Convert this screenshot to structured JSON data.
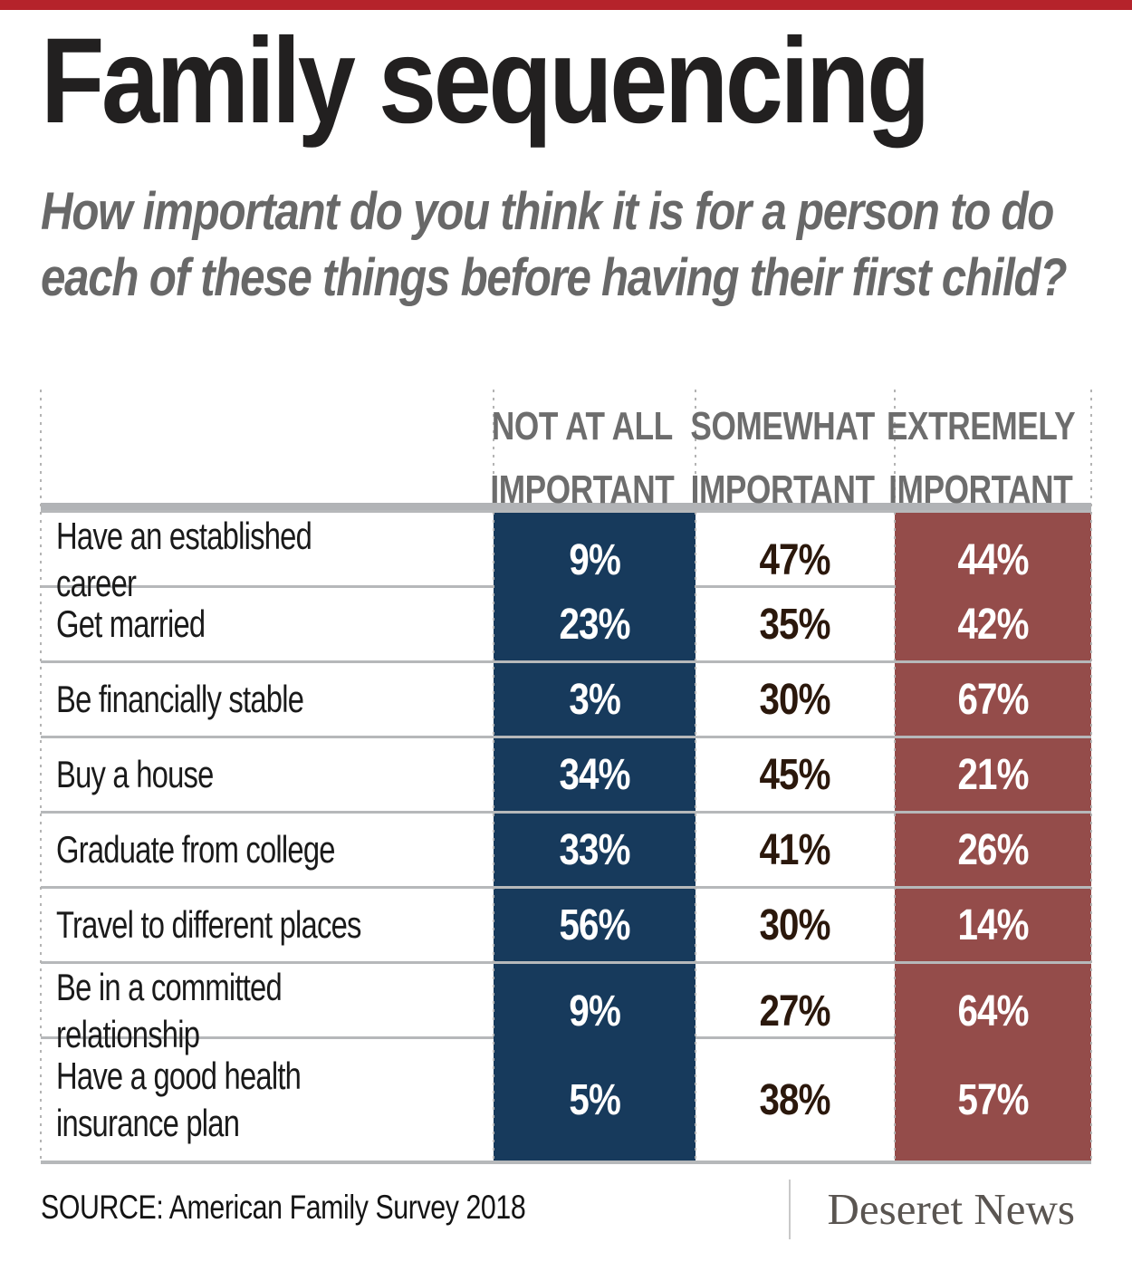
{
  "page": {
    "title": "Family sequencing",
    "subtitle": "How important do you think it is for a person to do each of these things before having their first child?"
  },
  "table": {
    "columns": [
      {
        "label": "NOT AT ALL IMPORTANT"
      },
      {
        "label": "SOMEWHAT IMPORTANT"
      },
      {
        "label": "EXTREMELY IMPORTANT"
      }
    ],
    "rows": [
      {
        "label": "Have an established career",
        "not_at_all": "9%",
        "somewhat": "47%",
        "extremely": "44%"
      },
      {
        "label": "Get married",
        "not_at_all": "23%",
        "somewhat": "35%",
        "extremely": "42%"
      },
      {
        "label": "Be financially stable",
        "not_at_all": "3%",
        "somewhat": "30%",
        "extremely": "67%"
      },
      {
        "label": "Buy a house",
        "not_at_all": "34%",
        "somewhat": "45%",
        "extremely": "21%"
      },
      {
        "label": "Graduate from college",
        "not_at_all": "33%",
        "somewhat": "41%",
        "extremely": "26%"
      },
      {
        "label": "Travel to different places",
        "not_at_all": "56%",
        "somewhat": "30%",
        "extremely": "14%"
      },
      {
        "label": "Be in a committed relationship",
        "not_at_all": "9%",
        "somewhat": "27%",
        "extremely": "64%"
      },
      {
        "label": "Have a good health insurance plan",
        "not_at_all": "5%",
        "somewhat": "38%",
        "extremely": "57%"
      }
    ]
  },
  "chart_data": {
    "type": "table",
    "title": "Family sequencing",
    "subtitle": "How important do you think it is for a person to do each of these things before having their first child?",
    "categories": [
      "Have an established career",
      "Get married",
      "Be financially stable",
      "Buy a house",
      "Graduate from college",
      "Travel to different places",
      "Be in a committed relationship",
      "Have a good health insurance plan"
    ],
    "series": [
      {
        "name": "Not at all important",
        "values": [
          9,
          23,
          3,
          34,
          33,
          56,
          9,
          5
        ]
      },
      {
        "name": "Somewhat important",
        "values": [
          47,
          35,
          30,
          45,
          41,
          30,
          27,
          38
        ]
      },
      {
        "name": "Extremely important",
        "values": [
          44,
          42,
          67,
          21,
          26,
          14,
          64,
          57
        ]
      }
    ],
    "unit": "percent",
    "source": "American Family Survey 2018"
  },
  "footer": {
    "source": "SOURCE: American Family Survey 2018",
    "brand": "Deseret News"
  },
  "colors": {
    "topbar": "#b5232b",
    "blue": "#173a5c",
    "red": "#944c4a",
    "header_gray": "#6d6d6d",
    "subtitle_gray": "#686868",
    "separator": "#b6b8ba",
    "midtext": "#2b180c",
    "brand": "#5a5551"
  }
}
